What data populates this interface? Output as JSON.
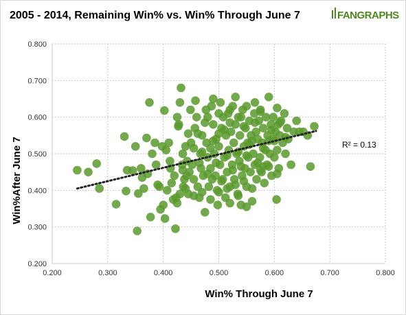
{
  "logo": {
    "text": "FANGRAPHS",
    "color": "#4a8a1c"
  },
  "chart_data": {
    "type": "scatter",
    "title": "2005 - 2014, Remaining Win% vs. Win% Through June 7",
    "xlabel": "Win% Through June 7",
    "ylabel": "Win%After  June 7",
    "xlim": [
      0.2,
      0.8
    ],
    "ylim": [
      0.2,
      0.8
    ],
    "x_ticks": [
      "0.200",
      "0.300",
      "0.400",
      "0.500",
      "0.600",
      "0.700",
      "0.800"
    ],
    "y_ticks": [
      "0.200",
      "0.300",
      "0.400",
      "0.500",
      "0.600",
      "0.700",
      "0.800"
    ],
    "grid": true,
    "point_color": "#5b9a2e",
    "trendline": {
      "style": "dotted",
      "x": [
        0.245,
        0.675
      ],
      "y": [
        0.405,
        0.562
      ],
      "color": "#222222"
    },
    "annotation": "R² = 0.13",
    "points": [
      [
        0.245,
        0.455
      ],
      [
        0.265,
        0.45
      ],
      [
        0.28,
        0.473
      ],
      [
        0.285,
        0.405
      ],
      [
        0.315,
        0.362
      ],
      [
        0.33,
        0.547
      ],
      [
        0.333,
        0.398
      ],
      [
        0.335,
        0.455
      ],
      [
        0.345,
        0.454
      ],
      [
        0.35,
        0.52
      ],
      [
        0.353,
        0.289
      ],
      [
        0.355,
        0.391
      ],
      [
        0.36,
        0.46
      ],
      [
        0.362,
        0.435
      ],
      [
        0.365,
        0.405
      ],
      [
        0.37,
        0.543
      ],
      [
        0.372,
        0.445
      ],
      [
        0.375,
        0.64
      ],
      [
        0.377,
        0.327
      ],
      [
        0.38,
        0.5
      ],
      [
        0.385,
        0.53
      ],
      [
        0.387,
        0.47
      ],
      [
        0.39,
        0.415
      ],
      [
        0.393,
        0.41
      ],
      [
        0.395,
        0.348
      ],
      [
        0.398,
        0.52
      ],
      [
        0.4,
        0.36
      ],
      [
        0.402,
        0.618
      ],
      [
        0.403,
        0.323
      ],
      [
        0.405,
        0.51
      ],
      [
        0.407,
        0.4
      ],
      [
        0.41,
        0.53
      ],
      [
        0.412,
        0.48
      ],
      [
        0.413,
        0.46
      ],
      [
        0.415,
        0.42
      ],
      [
        0.418,
        0.375
      ],
      [
        0.42,
        0.44
      ],
      [
        0.422,
        0.295
      ],
      [
        0.423,
        0.38
      ],
      [
        0.425,
        0.6
      ],
      [
        0.427,
        0.575
      ],
      [
        0.428,
        0.58
      ],
      [
        0.43,
        0.64
      ],
      [
        0.432,
        0.68
      ],
      [
        0.434,
        0.47
      ],
      [
        0.435,
        0.5
      ],
      [
        0.436,
        0.41
      ],
      [
        0.438,
        0.43
      ],
      [
        0.44,
        0.52
      ],
      [
        0.442,
        0.44
      ],
      [
        0.443,
        0.48
      ],
      [
        0.445,
        0.39
      ],
      [
        0.447,
        0.45
      ],
      [
        0.449,
        0.62
      ],
      [
        0.45,
        0.53
      ],
      [
        0.452,
        0.47
      ],
      [
        0.455,
        0.43
      ],
      [
        0.457,
        0.57
      ],
      [
        0.458,
        0.645
      ],
      [
        0.46,
        0.6
      ],
      [
        0.462,
        0.41
      ],
      [
        0.465,
        0.38
      ],
      [
        0.467,
        0.5
      ],
      [
        0.468,
        0.46
      ],
      [
        0.47,
        0.55
      ],
      [
        0.472,
        0.44
      ],
      [
        0.475,
        0.34
      ],
      [
        0.477,
        0.62
      ],
      [
        0.478,
        0.53
      ],
      [
        0.48,
        0.49
      ],
      [
        0.482,
        0.41
      ],
      [
        0.485,
        0.46
      ],
      [
        0.487,
        0.63
      ],
      [
        0.488,
        0.43
      ],
      [
        0.49,
        0.58
      ],
      [
        0.492,
        0.5
      ],
      [
        0.494,
        0.44
      ],
      [
        0.495,
        0.54
      ],
      [
        0.497,
        0.4
      ],
      [
        0.498,
        0.36
      ],
      [
        0.5,
        0.52
      ],
      [
        0.502,
        0.47
      ],
      [
        0.503,
        0.64
      ],
      [
        0.505,
        0.57
      ],
      [
        0.507,
        0.43
      ],
      [
        0.508,
        0.6
      ],
      [
        0.51,
        0.49
      ],
      [
        0.512,
        0.38
      ],
      [
        0.513,
        0.55
      ],
      [
        0.515,
        0.45
      ],
      [
        0.517,
        0.61
      ],
      [
        0.518,
        0.51
      ],
      [
        0.52,
        0.41
      ],
      [
        0.522,
        0.56
      ],
      [
        0.524,
        0.47
      ],
      [
        0.525,
        0.63
      ],
      [
        0.527,
        0.53
      ],
      [
        0.528,
        0.43
      ],
      [
        0.53,
        0.58
      ],
      [
        0.532,
        0.5
      ],
      [
        0.534,
        0.39
      ],
      [
        0.535,
        0.6
      ],
      [
        0.537,
        0.48
      ],
      [
        0.538,
        0.55
      ],
      [
        0.54,
        0.36
      ],
      [
        0.542,
        0.44
      ],
      [
        0.543,
        0.62
      ],
      [
        0.545,
        0.52
      ],
      [
        0.547,
        0.46
      ],
      [
        0.548,
        0.57
      ],
      [
        0.55,
        0.41
      ],
      [
        0.552,
        0.53
      ],
      [
        0.553,
        0.49
      ],
      [
        0.555,
        0.59
      ],
      [
        0.557,
        0.45
      ],
      [
        0.558,
        0.55
      ],
      [
        0.56,
        0.37
      ],
      [
        0.562,
        0.5
      ],
      [
        0.564,
        0.61
      ],
      [
        0.565,
        0.47
      ],
      [
        0.567,
        0.56
      ],
      [
        0.568,
        0.43
      ],
      [
        0.57,
        0.54
      ],
      [
        0.572,
        0.59
      ],
      [
        0.574,
        0.49
      ],
      [
        0.575,
        0.62
      ],
      [
        0.577,
        0.45
      ],
      [
        0.578,
        0.53
      ],
      [
        0.58,
        0.57
      ],
      [
        0.582,
        0.42
      ],
      [
        0.584,
        0.51
      ],
      [
        0.585,
        0.6
      ],
      [
        0.587,
        0.47
      ],
      [
        0.588,
        0.55
      ],
      [
        0.59,
        0.655
      ],
      [
        0.592,
        0.5
      ],
      [
        0.594,
        0.58
      ],
      [
        0.595,
        0.44
      ],
      [
        0.597,
        0.54
      ],
      [
        0.598,
        0.6
      ],
      [
        0.6,
        0.49
      ],
      [
        0.602,
        0.56
      ],
      [
        0.604,
        0.375
      ],
      [
        0.605,
        0.51
      ],
      [
        0.607,
        0.58
      ],
      [
        0.608,
        0.46
      ],
      [
        0.61,
        0.55
      ],
      [
        0.612,
        0.59
      ],
      [
        0.615,
        0.53
      ],
      [
        0.618,
        0.61
      ],
      [
        0.62,
        0.5
      ],
      [
        0.623,
        0.57
      ],
      [
        0.625,
        0.54
      ],
      [
        0.63,
        0.47
      ],
      [
        0.635,
        0.56
      ],
      [
        0.64,
        0.59
      ],
      [
        0.645,
        0.56
      ],
      [
        0.652,
        0.56
      ],
      [
        0.66,
        0.55
      ],
      [
        0.665,
        0.465
      ],
      [
        0.672,
        0.575
      ],
      [
        0.462,
        0.555
      ],
      [
        0.475,
        0.585
      ],
      [
        0.49,
        0.535
      ],
      [
        0.51,
        0.565
      ],
      [
        0.52,
        0.585
      ],
      [
        0.535,
        0.505
      ],
      [
        0.545,
        0.575
      ],
      [
        0.555,
        0.525
      ],
      [
        0.565,
        0.585
      ],
      [
        0.58,
        0.515
      ],
      [
        0.595,
        0.565
      ],
      [
        0.47,
        0.505
      ],
      [
        0.485,
        0.515
      ],
      [
        0.5,
        0.555
      ],
      [
        0.515,
        0.495
      ],
      [
        0.525,
        0.455
      ],
      [
        0.54,
        0.465
      ],
      [
        0.55,
        0.495
      ],
      [
        0.56,
        0.535
      ],
      [
        0.57,
        0.475
      ],
      [
        0.58,
        0.465
      ],
      [
        0.59,
        0.535
      ],
      [
        0.6,
        0.535
      ],
      [
        0.61,
        0.585
      ],
      [
        0.62,
        0.545
      ],
      [
        0.445,
        0.555
      ],
      [
        0.455,
        0.515
      ],
      [
        0.465,
        0.475
      ],
      [
        0.48,
        0.445
      ],
      [
        0.495,
        0.475
      ],
      [
        0.505,
        0.425
      ],
      [
        0.515,
        0.405
      ],
      [
        0.53,
        0.415
      ],
      [
        0.545,
        0.425
      ],
      [
        0.56,
        0.405
      ],
      [
        0.575,
        0.455
      ],
      [
        0.59,
        0.465
      ],
      [
        0.605,
        0.445
      ],
      [
        0.435,
        0.455
      ],
      [
        0.44,
        0.405
      ],
      [
        0.455,
        0.385
      ],
      [
        0.47,
        0.395
      ],
      [
        0.485,
        0.375
      ],
      [
        0.5,
        0.395
      ],
      [
        0.52,
        0.365
      ],
      [
        0.535,
        0.385
      ],
      [
        0.55,
        0.355
      ],
      [
        0.43,
        0.39
      ],
      [
        0.425,
        0.365
      ],
      [
        0.48,
        0.6
      ],
      [
        0.5,
        0.61
      ],
      [
        0.52,
        0.62
      ],
      [
        0.54,
        0.6
      ],
      [
        0.55,
        0.63
      ],
      [
        0.565,
        0.64
      ],
      [
        0.575,
        0.615
      ],
      [
        0.605,
        0.625
      ],
      [
        0.49,
        0.65
      ],
      [
        0.53,
        0.655
      ]
    ]
  }
}
